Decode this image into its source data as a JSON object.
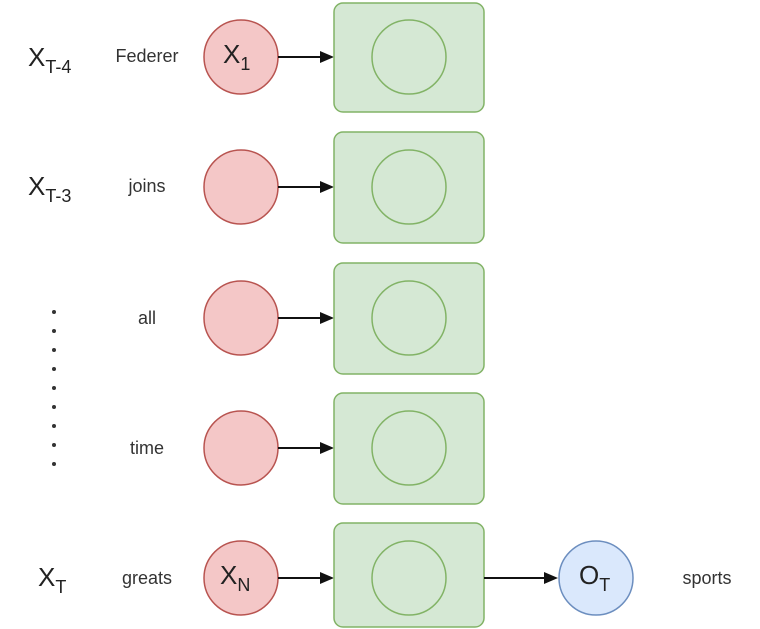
{
  "rows": [
    {
      "var": "X",
      "var_sub": "T-4",
      "word": "Federer",
      "node": "X",
      "node_sub": "1"
    },
    {
      "var": "X",
      "var_sub": "T-3",
      "word": "joins",
      "node": "",
      "node_sub": ""
    },
    {
      "var": "",
      "var_sub": "",
      "word": "all",
      "node": "",
      "node_sub": ""
    },
    {
      "var": "",
      "var_sub": "",
      "word": "time",
      "node": "",
      "node_sub": ""
    },
    {
      "var": "X",
      "var_sub": "T",
      "word": "greats",
      "node": "X",
      "node_sub": "N"
    }
  ],
  "output": {
    "node": "O",
    "node_sub": "T",
    "label": "sports"
  },
  "colors": {
    "input_fill": "#f4c7c7",
    "input_stroke": "#b85450",
    "cell_fill": "#d5e8d4",
    "cell_stroke": "#82b366",
    "output_fill": "#dae8fc",
    "output_stroke": "#6c8ebf"
  }
}
